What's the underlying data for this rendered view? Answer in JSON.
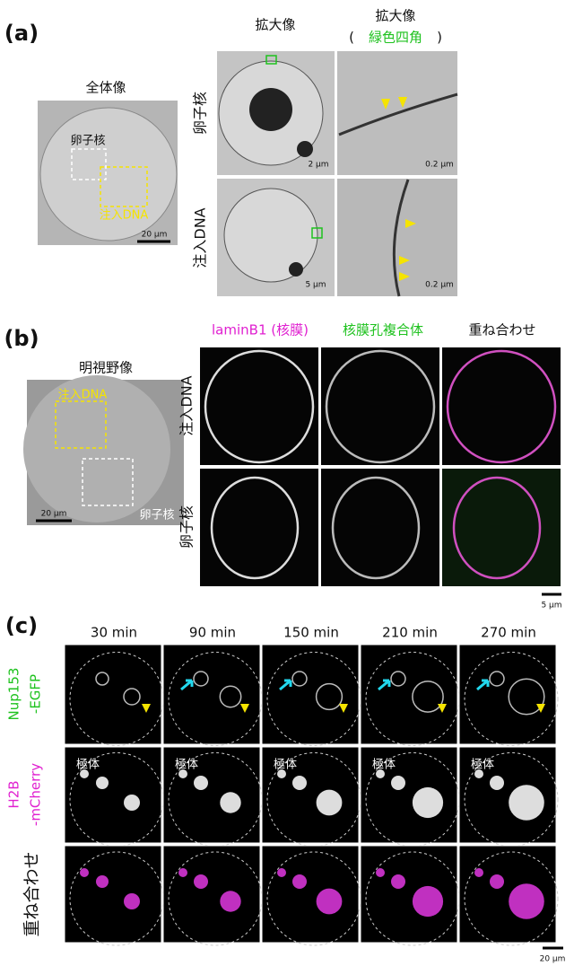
{
  "panel_a": {
    "label": "(a)",
    "overview_title": "全体像",
    "zoom_title": "拡大像",
    "zoom2_title": "拡大像",
    "zoom2_open": "(",
    "zoom2_sub": "緑色四角",
    "zoom2_close": ")",
    "overview_oocyte": "卵子核",
    "overview_injected": "注入DNA",
    "overview_scale": "20 µm",
    "row1_label": "卵子核",
    "row2_label": "注入DNA",
    "scale_r1c1": "2 µm",
    "scale_r1c2": "0.2 µm",
    "scale_r2c1": "5 µm",
    "scale_r2c2": "0.2 µm"
  },
  "panel_b": {
    "label": "(b)",
    "brightfield_title": "明視野像",
    "bf_injected": "注入DNA",
    "bf_oocyte": "卵子核",
    "bf_scale": "20 µm",
    "col_headers": [
      "laminB1 (核膜)",
      "核膜孔複合体",
      "重ね合わせ"
    ],
    "row1_label": "注入DNA",
    "row2_label": "卵子核",
    "scale": "5 µm"
  },
  "panel_c": {
    "label": "(c)",
    "times": [
      "30 min",
      "90 min",
      "150 min",
      "210 min",
      "270 min"
    ],
    "row1_label": [
      "Nup153",
      "-EGFP"
    ],
    "row2_label": [
      "H2B",
      "-mCherry"
    ],
    "row3_label": "重ね合わせ",
    "polar_body": [
      "極体",
      "極体",
      "極体",
      "極体",
      "極体"
    ],
    "scale": "20 µm"
  }
}
